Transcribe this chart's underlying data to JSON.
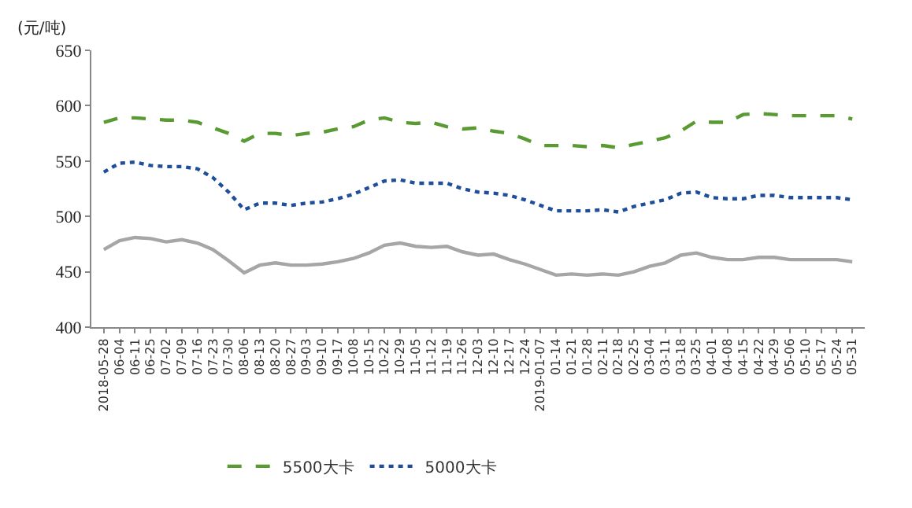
{
  "chart_data": {
    "type": "line",
    "ylabel": "(元/吨)",
    "categories": [
      "2018-05-28",
      "06-04",
      "06-11",
      "06-25",
      "07-02",
      "07-09",
      "07-16",
      "07-23",
      "07-30",
      "08-06",
      "08-13",
      "08-20",
      "08-27",
      "09-03",
      "09-10",
      "09-17",
      "10-08",
      "10-15",
      "10-22",
      "10-29",
      "11-05",
      "11-12",
      "11-19",
      "11-26",
      "12-03",
      "12-10",
      "12-17",
      "12-24",
      "2019-01-07",
      "01-14",
      "01-21",
      "01-28",
      "02-11",
      "02-18",
      "02-25",
      "03-04",
      "03-11",
      "03-18",
      "03-25",
      "04-01",
      "04-08",
      "04-15",
      "04-22",
      "04-29",
      "05-06",
      "05-10",
      "05-17",
      "05-24",
      "05-31"
    ],
    "series": [
      {
        "name": "5500大卡",
        "color": "#5a9a32",
        "line_style": "dashed",
        "values": [
          585,
          589,
          589,
          588,
          587,
          587,
          585,
          580,
          575,
          568,
          575,
          575,
          573,
          575,
          576,
          579,
          581,
          587,
          589,
          585,
          584,
          585,
          581,
          579,
          580,
          577,
          575,
          570,
          564,
          564,
          564,
          563,
          564,
          562,
          565,
          568,
          571,
          577,
          586,
          585,
          585,
          592,
          593,
          592,
          591,
          591,
          591,
          591,
          588
        ]
      },
      {
        "name": "5000大卡",
        "color": "#1f4e9a",
        "line_style": "dotted",
        "values": [
          540,
          548,
          549,
          546,
          545,
          545,
          543,
          535,
          522,
          506,
          512,
          512,
          510,
          512,
          513,
          516,
          520,
          526,
          532,
          533,
          530,
          530,
          530,
          525,
          522,
          521,
          519,
          515,
          510,
          505,
          505,
          505,
          506,
          504,
          509,
          512,
          515,
          521,
          522,
          517,
          516,
          516,
          519,
          519,
          517,
          517,
          517,
          517,
          515
        ]
      },
      {
        "color": "#a6a6a6",
        "line_style": "solid",
        "values": [
          470,
          478,
          481,
          480,
          477,
          479,
          476,
          470,
          460,
          449,
          456,
          458,
          456,
          456,
          457,
          459,
          462,
          467,
          474,
          476,
          473,
          472,
          473,
          468,
          465,
          466,
          461,
          457,
          452,
          447,
          448,
          447,
          448,
          447,
          450,
          455,
          458,
          465,
          467,
          463,
          461,
          461,
          463,
          463,
          461,
          461,
          461,
          461,
          459
        ]
      }
    ],
    "ylim": [
      400,
      650
    ],
    "yticks": [
      400,
      450,
      500,
      550,
      600,
      650
    ],
    "grid": false,
    "legend": "bottom",
    "marker": "none"
  }
}
